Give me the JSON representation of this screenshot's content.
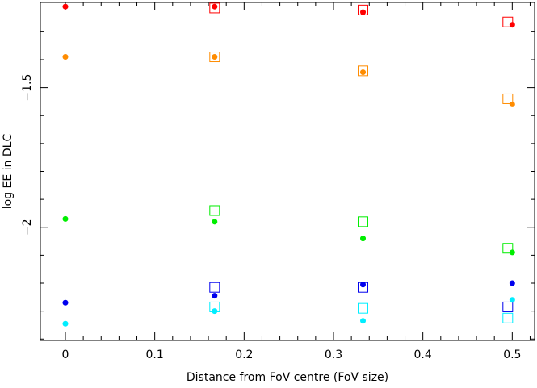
{
  "chart_data": {
    "type": "scatter",
    "title": "",
    "xlabel": "Distance from FoV centre (FoV size)",
    "ylabel": "log EE in DLC",
    "xlim": [
      -0.028,
      0.525
    ],
    "ylim": [
      -2.405,
      -1.195
    ],
    "xticks": {
      "major": [
        0,
        0.1,
        0.2,
        0.3,
        0.4,
        0.5
      ],
      "minor": [
        0.02,
        0.04,
        0.06,
        0.08,
        0.12,
        0.14,
        0.16,
        0.18,
        0.22,
        0.24,
        0.26,
        0.28,
        0.32,
        0.34,
        0.36,
        0.38,
        0.42,
        0.44,
        0.46,
        0.48,
        0.52
      ],
      "labels": [
        "0",
        "0.1",
        "0.2",
        "0.3",
        "0.4",
        "0.5"
      ]
    },
    "yticks": {
      "major": [
        -1.5,
        -2
      ],
      "minor": [
        -1.3,
        -1.4,
        -1.6,
        -1.7,
        -1.8,
        -1.9,
        -2.1,
        -2.2,
        -2.3,
        -2.4
      ],
      "labels": [
        "−1.5",
        "−2"
      ]
    },
    "grid": false,
    "legend": "none",
    "series": [
      {
        "color": "#ff0000",
        "filled_circles": [
          [
            0,
            -1.21
          ],
          [
            0.167,
            -1.21
          ],
          [
            0.333,
            -1.23
          ],
          [
            0.5,
            -1.275
          ]
        ],
        "open_squares": [
          [
            0.167,
            -1.215
          ],
          [
            0.333,
            -1.222
          ],
          [
            0.495,
            -1.265
          ]
        ]
      },
      {
        "color": "#ff8c00",
        "filled_circles": [
          [
            0,
            -1.39
          ],
          [
            0.167,
            -1.39
          ],
          [
            0.333,
            -1.445
          ],
          [
            0.5,
            -1.56
          ]
        ],
        "open_squares": [
          [
            0.167,
            -1.39
          ],
          [
            0.333,
            -1.44
          ],
          [
            0.495,
            -1.54
          ]
        ]
      },
      {
        "color": "#00ee00",
        "filled_circles": [
          [
            0,
            -1.97
          ],
          [
            0.167,
            -1.98
          ],
          [
            0.333,
            -2.04
          ],
          [
            0.5,
            -2.09
          ]
        ],
        "open_squares": [
          [
            0.167,
            -1.94
          ],
          [
            0.333,
            -1.98
          ],
          [
            0.495,
            -2.075
          ]
        ]
      },
      {
        "color": "#0000ee",
        "filled_circles": [
          [
            0,
            -2.27
          ],
          [
            0.167,
            -2.245
          ],
          [
            0.333,
            -2.205
          ],
          [
            0.5,
            -2.2
          ]
        ],
        "open_squares": [
          [
            0.167,
            -2.215
          ],
          [
            0.333,
            -2.215
          ],
          [
            0.495,
            -2.285
          ]
        ]
      },
      {
        "color": "#00eeff",
        "filled_circles": [
          [
            0,
            -2.345
          ],
          [
            0.167,
            -2.3
          ],
          [
            0.333,
            -2.335
          ],
          [
            0.5,
            -2.26
          ]
        ],
        "open_squares": [
          [
            0.167,
            -2.285
          ],
          [
            0.333,
            -2.29
          ],
          [
            0.495,
            -2.325
          ]
        ]
      }
    ]
  }
}
